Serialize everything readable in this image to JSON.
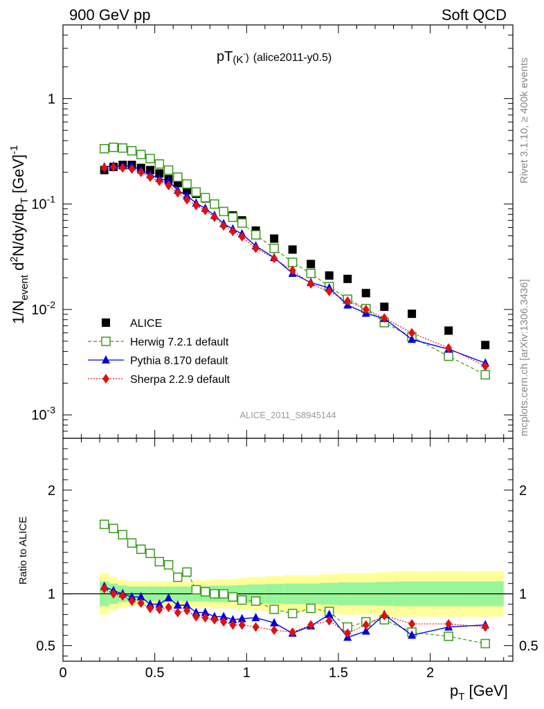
{
  "header": {
    "left": "900 GeV pp",
    "right": "Soft QCD"
  },
  "side_labels": {
    "rivet": "Rivet 3.1.10, ≥ 400k events",
    "mcplots": "mcplots.cern.ch [arXiv:1306.3436]"
  },
  "colors": {
    "alice": "#000000",
    "herwig": "#3a9a1a",
    "pythia": "#0000dd",
    "sherpa": "#e01010",
    "band_inner": "#99f599",
    "band_outer": "#ffff99"
  },
  "chart_data": [
    {
      "type": "scatter",
      "title": "pT",
      "title_sub": "(K",
      "title_sup": "-",
      "title_after": ")",
      "title_tag": "(alice2011-y0.5)",
      "ylabel": "1/N_event d²N/dy/dp_T [GeV]⁻¹",
      "ylabel_parts": {
        "a": "1/N",
        "a_sub": "event",
        "b": " d",
        "b_sup": "2",
        "c": "N/dy/dp",
        "c_sub": "T",
        "d": " [GeV]",
        "d_sup": "-1"
      },
      "yscale": "log",
      "ylim": [
        0.0006,
        5
      ],
      "xlim": [
        0,
        2.45
      ],
      "y_ticks": [
        {
          "v": 1,
          "label": "1"
        },
        {
          "v": 0.1,
          "label": "10",
          "sup": "-1"
        },
        {
          "v": 0.01,
          "label": "10",
          "sup": "-2"
        },
        {
          "v": 0.001,
          "label": "10",
          "sup": "-3"
        }
      ],
      "watermark": "ALICE_2011_S8945144",
      "legend_position": "bottom-left",
      "legend": [
        {
          "key": "alice",
          "label": "ALICE"
        },
        {
          "key": "herwig",
          "label": "Herwig 7.2.1 default"
        },
        {
          "key": "pythia",
          "label": "Pythia 8.170 default"
        },
        {
          "key": "sherpa",
          "label": "Sherpa 2.2.9 default"
        }
      ],
      "x": [
        0.225,
        0.275,
        0.325,
        0.375,
        0.425,
        0.475,
        0.525,
        0.575,
        0.625,
        0.675,
        0.725,
        0.775,
        0.825,
        0.875,
        0.925,
        0.975,
        1.05,
        1.15,
        1.25,
        1.35,
        1.45,
        1.55,
        1.65,
        1.75,
        1.9,
        2.1,
        2.3
      ],
      "series": [
        {
          "key": "alice",
          "name": "ALICE",
          "values": [
            0.21,
            0.225,
            0.235,
            0.235,
            0.22,
            0.21,
            0.195,
            0.172,
            0.158,
            0.135,
            0.125,
            0.113,
            0.1,
            0.085,
            0.078,
            0.07,
            0.056,
            0.047,
            0.037,
            0.027,
            0.021,
            0.0195,
            0.0143,
            0.0106,
            0.0091,
            0.0063,
            0.0046
          ]
        },
        {
          "key": "herwig",
          "name": "Herwig 7.2.1 default",
          "values": [
            0.335,
            0.345,
            0.34,
            0.32,
            0.295,
            0.27,
            0.24,
            0.21,
            0.18,
            0.155,
            0.13,
            0.115,
            0.1,
            0.085,
            0.075,
            0.066,
            0.051,
            0.038,
            0.028,
            0.022,
            0.0165,
            0.0125,
            0.0102,
            0.0075,
            0.0055,
            0.0036,
            0.0024
          ]
        },
        {
          "key": "pythia",
          "name": "Pythia 8.170 default",
          "values": [
            0.225,
            0.23,
            0.23,
            0.23,
            0.21,
            0.19,
            0.175,
            0.165,
            0.135,
            0.12,
            0.102,
            0.091,
            0.078,
            0.065,
            0.058,
            0.052,
            0.04,
            0.031,
            0.022,
            0.018,
            0.016,
            0.011,
            0.0092,
            0.0082,
            0.0052,
            0.0042,
            0.0031
          ]
        },
        {
          "key": "sherpa",
          "name": "Sherpa 2.2.9 default",
          "values": [
            0.22,
            0.225,
            0.22,
            0.215,
            0.2,
            0.18,
            0.165,
            0.15,
            0.128,
            0.11,
            0.097,
            0.087,
            0.075,
            0.062,
            0.055,
            0.049,
            0.038,
            0.0305,
            0.0235,
            0.0175,
            0.0148,
            0.012,
            0.01,
            0.0083,
            0.006,
            0.0043,
            0.0029
          ]
        }
      ]
    },
    {
      "type": "scatter",
      "ylabel": "Ratio to ALICE",
      "ylim": [
        0.35,
        2.5
      ],
      "xlim": [
        0,
        2.45
      ],
      "y_ticks": [
        {
          "v": 2,
          "label": "2"
        },
        {
          "v": 1,
          "label": "1"
        },
        {
          "v": 0.5,
          "label": "0.5"
        }
      ],
      "x_ticks": [
        {
          "v": 0,
          "label": "0"
        },
        {
          "v": 0.5,
          "label": "0.5"
        },
        {
          "v": 1,
          "label": "1"
        },
        {
          "v": 1.5,
          "label": "1.5"
        },
        {
          "v": 2,
          "label": "2"
        }
      ],
      "xlabel": "p_T [GeV]",
      "xlabel_parts": {
        "a": "p",
        "a_sub": "T",
        "b": " [GeV]"
      },
      "band_edges": [
        0.2,
        0.25,
        0.3,
        0.35,
        0.4,
        0.45,
        0.5,
        0.55,
        0.6,
        0.65,
        0.7,
        0.75,
        0.8,
        0.85,
        0.9,
        0.95,
        1.0,
        1.1,
        1.2,
        1.3,
        1.4,
        1.5,
        1.6,
        1.7,
        1.8,
        2.0,
        2.2,
        2.4
      ],
      "band_inner": [
        0.12,
        0.1,
        0.08,
        0.07,
        0.07,
        0.07,
        0.07,
        0.07,
        0.07,
        0.07,
        0.075,
        0.075,
        0.08,
        0.08,
        0.08,
        0.085,
        0.09,
        0.095,
        0.1,
        0.1,
        0.105,
        0.11,
        0.11,
        0.115,
        0.12,
        0.12,
        0.12
      ],
      "band_outer": [
        0.2,
        0.16,
        0.13,
        0.12,
        0.12,
        0.12,
        0.12,
        0.12,
        0.12,
        0.12,
        0.13,
        0.13,
        0.14,
        0.14,
        0.14,
        0.15,
        0.16,
        0.17,
        0.18,
        0.18,
        0.19,
        0.2,
        0.2,
        0.21,
        0.22,
        0.22,
        0.22
      ],
      "x": [
        0.225,
        0.275,
        0.325,
        0.375,
        0.425,
        0.475,
        0.525,
        0.575,
        0.625,
        0.675,
        0.725,
        0.775,
        0.825,
        0.875,
        0.925,
        0.975,
        1.05,
        1.15,
        1.25,
        1.35,
        1.45,
        1.55,
        1.65,
        1.75,
        1.9,
        2.1,
        2.3
      ],
      "series": [
        {
          "key": "herwig",
          "name": "Herwig 7.2.1 default",
          "values": [
            1.67,
            1.63,
            1.57,
            1.49,
            1.43,
            1.39,
            1.31,
            1.28,
            1.16,
            1.21,
            1.04,
            1.02,
            1.0,
            1.0,
            0.97,
            0.94,
            0.93,
            0.85,
            0.81,
            0.86,
            0.83,
            0.68,
            0.73,
            0.75,
            0.63,
            0.59,
            0.52
          ]
        },
        {
          "key": "pythia",
          "name": "Pythia 8.170 default",
          "values": [
            1.07,
            1.03,
            1.0,
            0.97,
            0.97,
            0.9,
            0.9,
            0.96,
            0.89,
            0.89,
            0.82,
            0.82,
            0.78,
            0.78,
            0.75,
            0.76,
            0.77,
            0.72,
            0.62,
            0.69,
            0.8,
            0.58,
            0.64,
            0.8,
            0.6,
            0.68,
            0.7
          ]
        },
        {
          "key": "sherpa",
          "name": "Sherpa 2.2.9 default",
          "values": [
            1.05,
            1.0,
            0.98,
            0.93,
            0.91,
            0.86,
            0.85,
            0.87,
            0.82,
            0.84,
            0.78,
            0.77,
            0.75,
            0.73,
            0.7,
            0.7,
            0.68,
            0.65,
            0.63,
            0.7,
            0.74,
            0.62,
            0.7,
            0.79,
            0.71,
            0.71,
            0.68
          ]
        }
      ]
    }
  ]
}
